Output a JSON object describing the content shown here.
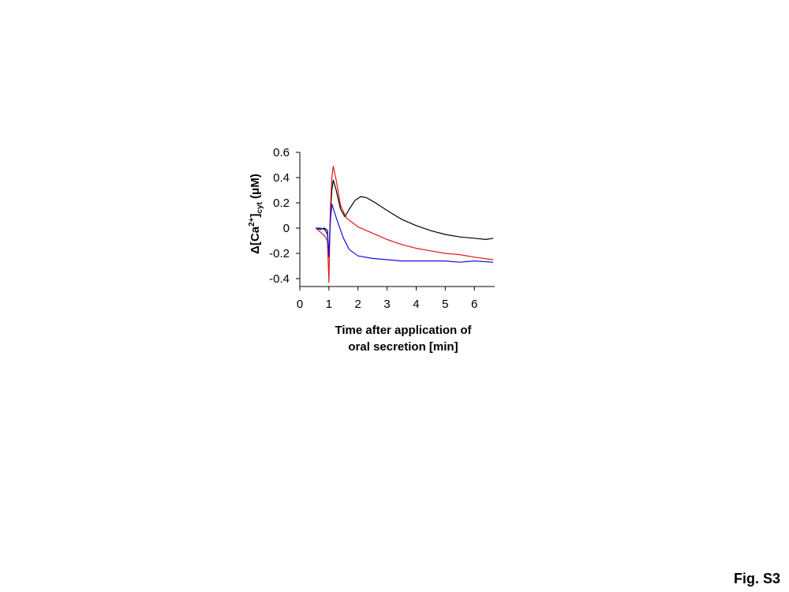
{
  "figure_label": "Fig. S3",
  "chart_data": {
    "type": "line",
    "title": "",
    "xlabel_line1": "Time after application of",
    "xlabel_line2": "oral secretion [min]",
    "ylabel": {
      "delta": "Δ",
      "base": "[Ca",
      "sup": "2+",
      "close": "]",
      "sub": "cyt",
      "unit": " (μM)"
    },
    "xlim": [
      0,
      6.7
    ],
    "ylim": [
      -0.45,
      0.6
    ],
    "xticks": [
      0,
      1,
      2,
      3,
      4,
      5,
      6
    ],
    "yticks": [
      {
        "value": -0.4,
        "label": "-0.4"
      },
      {
        "value": -0.2,
        "label": "-0.2"
      },
      {
        "value": 0,
        "label": "0"
      },
      {
        "value": 0.2,
        "label": "0.2"
      },
      {
        "value": 0.4,
        "label": "0.4"
      },
      {
        "value": 0.6,
        "label": "0.6"
      }
    ],
    "grid": false,
    "series": [
      {
        "color": "#000000",
        "x": [
          0.55,
          0.7,
          0.85,
          0.95,
          1.0,
          1.05,
          1.1,
          1.15,
          1.25,
          1.4,
          1.55,
          1.7,
          1.9,
          2.1,
          2.3,
          2.6,
          3.0,
          3.5,
          4.0,
          4.5,
          5.0,
          5.5,
          6.0,
          6.4,
          6.65
        ],
        "y": [
          0,
          -0.01,
          0,
          -0.02,
          -0.23,
          0.1,
          0.3,
          0.38,
          0.3,
          0.15,
          0.09,
          0.15,
          0.22,
          0.25,
          0.24,
          0.2,
          0.14,
          0.07,
          0.02,
          -0.02,
          -0.05,
          -0.07,
          -0.08,
          -0.09,
          -0.08
        ]
      },
      {
        "color": "#e01818",
        "x": [
          0.55,
          0.7,
          0.85,
          0.95,
          1.0,
          1.05,
          1.1,
          1.15,
          1.25,
          1.4,
          1.6,
          2.0,
          2.5,
          3.0,
          3.5,
          4.0,
          4.5,
          5.0,
          5.5,
          6.0,
          6.65
        ],
        "y": [
          0,
          -0.03,
          -0.06,
          -0.1,
          -0.43,
          0.15,
          0.4,
          0.49,
          0.38,
          0.18,
          0.08,
          0.01,
          -0.04,
          -0.09,
          -0.13,
          -0.16,
          -0.18,
          -0.2,
          -0.21,
          -0.23,
          -0.25
        ]
      },
      {
        "color": "#1010e0",
        "x": [
          0.55,
          0.7,
          0.85,
          0.95,
          1.0,
          1.05,
          1.1,
          1.2,
          1.3,
          1.5,
          1.7,
          2.0,
          2.5,
          3.0,
          3.5,
          4.0,
          4.5,
          5.0,
          5.5,
          6.0,
          6.65
        ],
        "y": [
          0,
          0,
          -0.01,
          -0.05,
          -0.22,
          0.05,
          0.19,
          0.12,
          0.05,
          -0.08,
          -0.17,
          -0.22,
          -0.24,
          -0.25,
          -0.26,
          -0.26,
          -0.26,
          -0.26,
          -0.27,
          -0.26,
          -0.27
        ]
      }
    ]
  }
}
